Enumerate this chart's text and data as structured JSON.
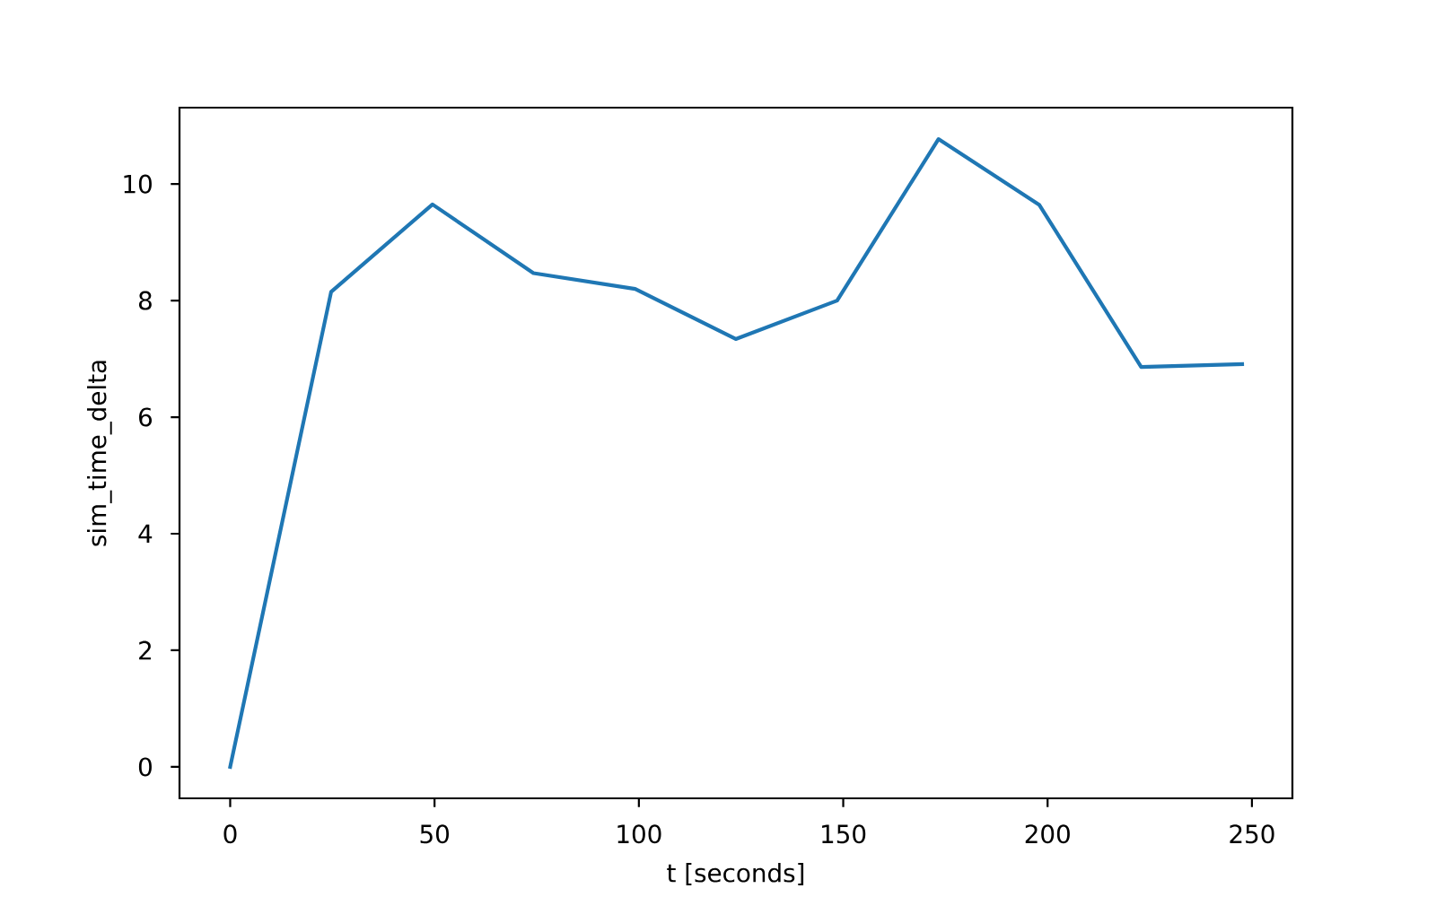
{
  "chart_data": {
    "type": "line",
    "xlabel": "t [seconds]",
    "ylabel": "sim_time_delta",
    "x": [
      0,
      24.7,
      49.5,
      74.2,
      99.1,
      123.7,
      148.5,
      173.3,
      198.0,
      222.9,
      247.6
    ],
    "series": [
      {
        "color": "#1f77b4",
        "values": [
          0,
          8.15,
          9.65,
          8.47,
          8.2,
          7.34,
          8.0,
          10.77,
          9.64,
          6.86,
          6.91
        ]
      }
    ],
    "xlim": [
      -12.4,
      259.9
    ],
    "ylim": [
      -0.54,
      11.31
    ],
    "xticks": [
      0,
      50,
      100,
      150,
      200,
      250
    ],
    "yticks": [
      0,
      2,
      4,
      6,
      8,
      10
    ]
  }
}
